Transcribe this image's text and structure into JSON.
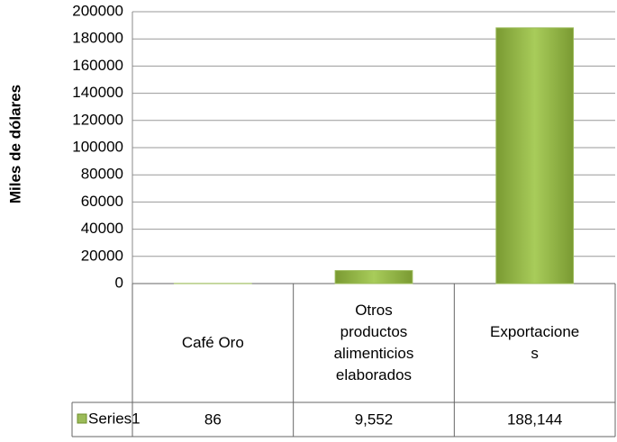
{
  "chart_data": {
    "type": "bar",
    "y_axis_label": "Miles de dólares",
    "categories": [
      "Café Oro",
      "Otros productos alimenticios elaborados",
      "Exportaciones"
    ],
    "series": [
      {
        "name": "Series1",
        "color": "#9bbb59",
        "values": [
          86,
          9552,
          188144
        ],
        "value_labels": [
          "86",
          "9,552",
          "188,144"
        ]
      }
    ],
    "ylim": [
      0,
      200000
    ],
    "yticks": [
      0,
      20000,
      40000,
      60000,
      80000,
      100000,
      120000,
      140000,
      160000,
      180000,
      200000
    ],
    "grid": true,
    "data_table": true
  }
}
